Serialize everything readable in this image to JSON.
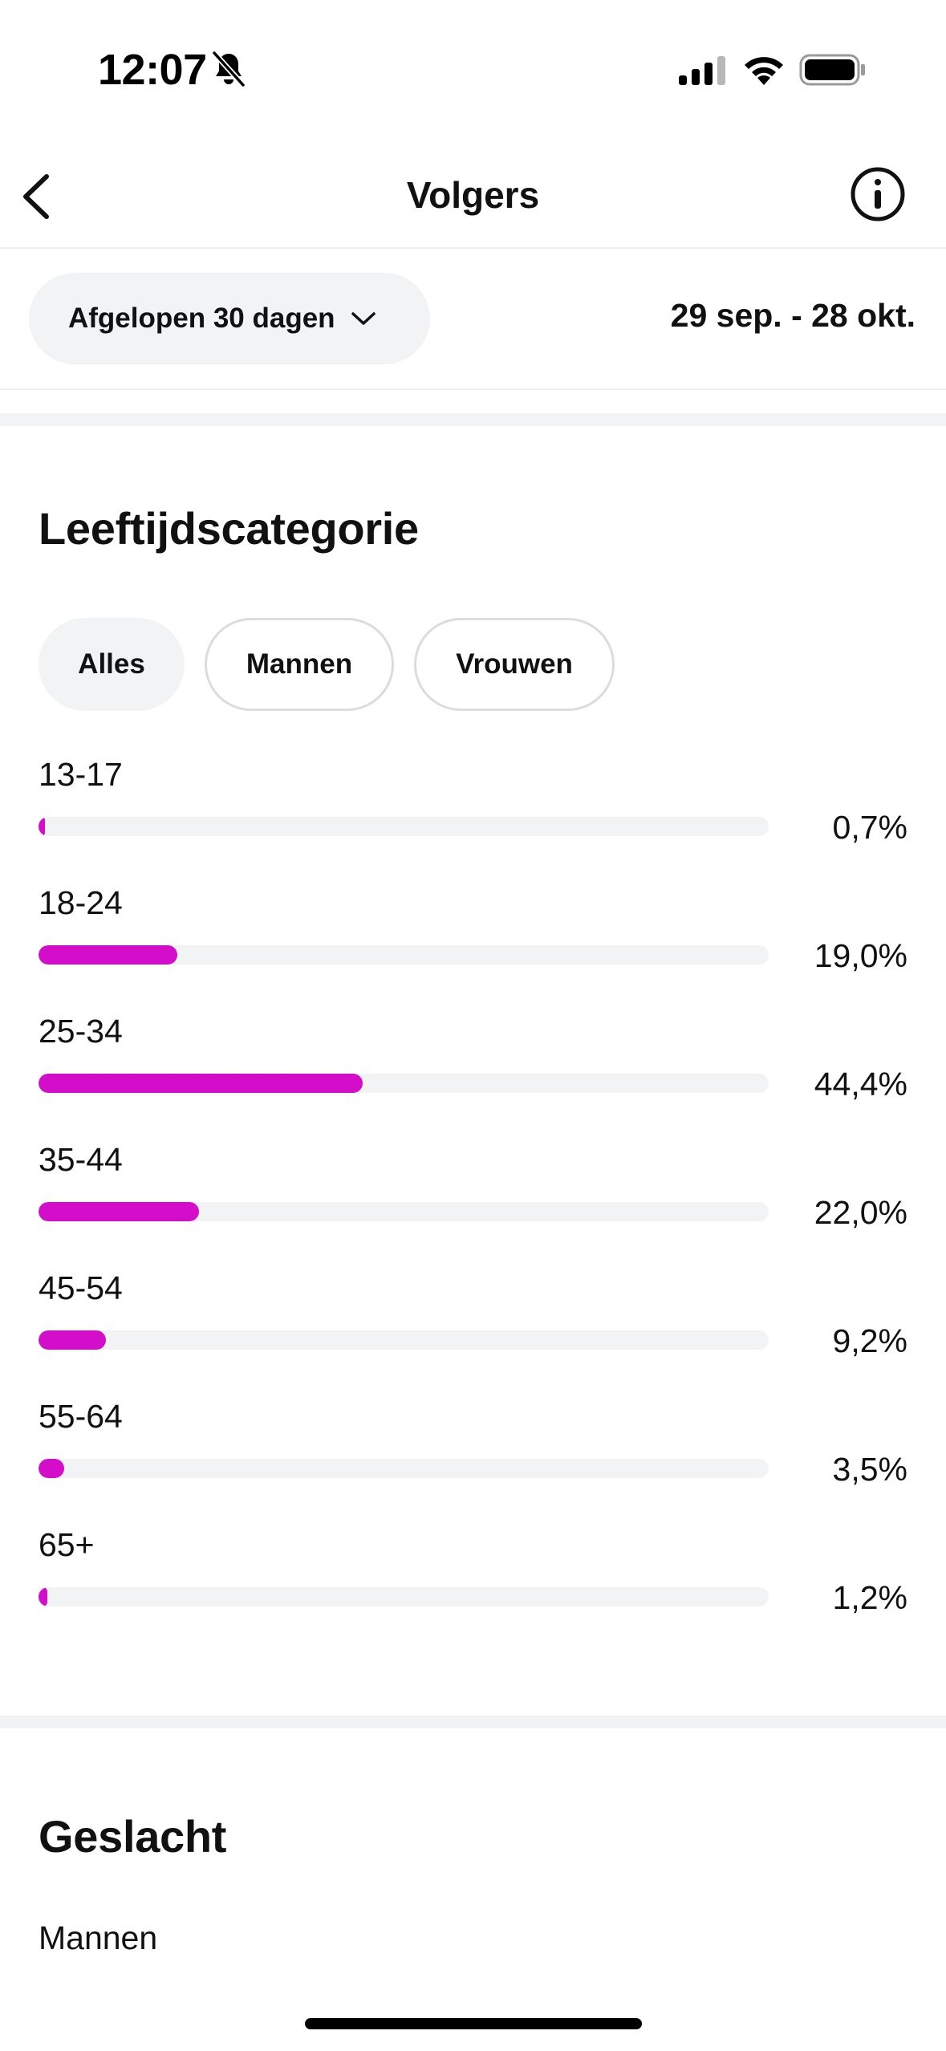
{
  "status_bar": {
    "time": "12:07"
  },
  "nav": {
    "title": "Volgers"
  },
  "filter": {
    "period_label": "Afgelopen 30 dagen",
    "date_range": "29 sep. - 28 okt."
  },
  "age_section": {
    "title": "Leeftijdscategorie",
    "chips": [
      {
        "label": "Alles",
        "selected": true
      },
      {
        "label": "Mannen",
        "selected": false
      },
      {
        "label": "Vrouwen",
        "selected": false
      }
    ],
    "rows": [
      {
        "label": "13-17",
        "value": "0,7%",
        "fraction": 0.007
      },
      {
        "label": "18-24",
        "value": "19,0%",
        "fraction": 0.19
      },
      {
        "label": "25-34",
        "value": "44,4%",
        "fraction": 0.444
      },
      {
        "label": "35-44",
        "value": "22,0%",
        "fraction": 0.22
      },
      {
        "label": "45-54",
        "value": "9,2%",
        "fraction": 0.092
      },
      {
        "label": "55-64",
        "value": "3,5%",
        "fraction": 0.035
      },
      {
        "label": "65+",
        "value": "1,2%",
        "fraction": 0.012
      }
    ]
  },
  "gender_section": {
    "title": "Geslacht",
    "first_label": "Mannen"
  },
  "colors": {
    "accent": "#d40dcb",
    "track": "#f2f3f5"
  }
}
